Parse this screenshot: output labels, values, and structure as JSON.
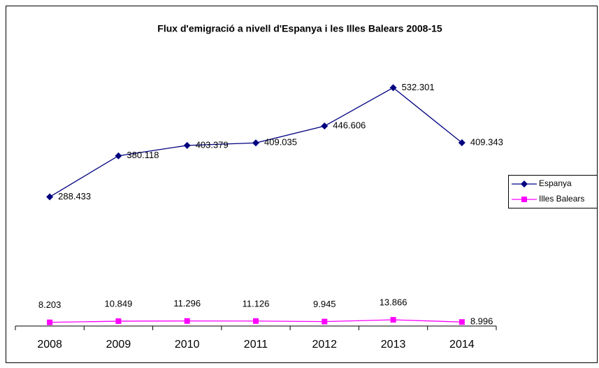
{
  "chart_data": {
    "type": "line",
    "title": "Flux d'emigració a nivell d'Espanya i les Illes Balears 2008-15",
    "categories": [
      "2008",
      "2009",
      "2010",
      "2011",
      "2012",
      "2013",
      "2014"
    ],
    "series": [
      {
        "name": "Espanya",
        "color": "#000080",
        "marker": "diamond",
        "values": [
          288433,
          380118,
          403379,
          409035,
          446606,
          532301,
          409343
        ],
        "value_labels": [
          "288.433",
          "380.118",
          "403.379",
          "409.035",
          "446.606",
          "532.301",
          "409.343"
        ]
      },
      {
        "name": "Illes Balears",
        "color": "#ff00ff",
        "marker": "square",
        "values": [
          8203,
          10849,
          11296,
          11126,
          9945,
          13866,
          8996
        ],
        "value_labels": [
          "8.203",
          "10.849",
          "11.296",
          "11.126",
          "9.945",
          "13.866",
          "8.996"
        ]
      }
    ],
    "ylim": [
      0,
      700000
    ],
    "legend": "right"
  }
}
